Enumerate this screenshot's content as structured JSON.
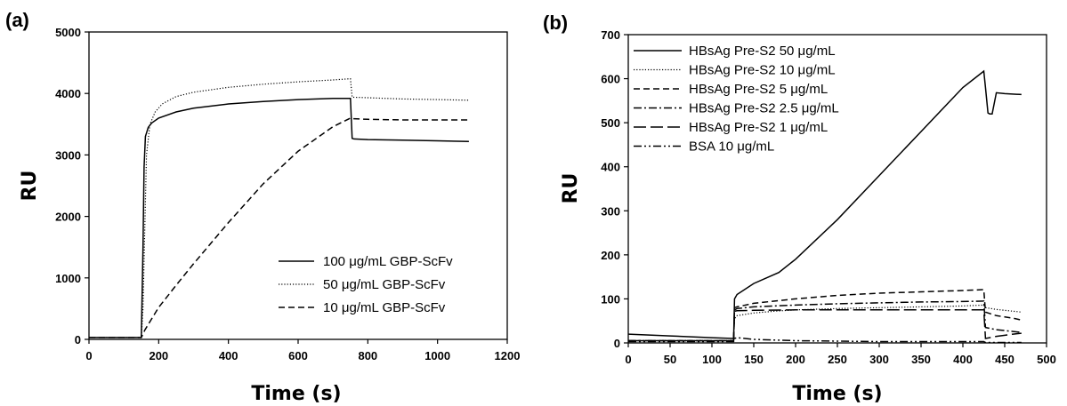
{
  "chart_data": [
    {
      "type": "line",
      "panel_label": "(a)",
      "xlabel": "Time (s)",
      "ylabel": "RU",
      "xlim": [
        0,
        1200
      ],
      "ylim": [
        0,
        5000
      ],
      "xticks": [
        0,
        200,
        400,
        600,
        800,
        1000,
        1200
      ],
      "yticks": [
        0,
        1000,
        2000,
        3000,
        4000,
        5000
      ],
      "legend_position": "bottom-right",
      "series": [
        {
          "name": "100  μg/mL    GBP-ScFv",
          "style": "solid",
          "x": [
            0,
            150,
            155,
            158,
            162,
            170,
            180,
            200,
            250,
            300,
            400,
            500,
            600,
            700,
            750,
            755,
            760,
            800,
            900,
            1000,
            1090
          ],
          "y": [
            30,
            30,
            1500,
            2800,
            3300,
            3450,
            3520,
            3600,
            3700,
            3760,
            3830,
            3870,
            3900,
            3920,
            3920,
            3270,
            3260,
            3250,
            3240,
            3230,
            3220
          ]
        },
        {
          "name": "50   μg/mL    GBP-ScFv",
          "style": "dotted",
          "x": [
            0,
            150,
            155,
            160,
            165,
            175,
            190,
            210,
            250,
            300,
            400,
            500,
            600,
            700,
            750,
            755,
            800,
            900,
            1000,
            1090
          ],
          "y": [
            30,
            30,
            500,
            1800,
            3000,
            3500,
            3700,
            3830,
            3950,
            4020,
            4100,
            4150,
            4190,
            4220,
            4240,
            3940,
            3930,
            3910,
            3900,
            3890
          ]
        },
        {
          "name": "10   μg/mL    GBP-ScFv",
          "style": "dashed",
          "x": [
            0,
            150,
            152,
            160,
            200,
            250,
            300,
            400,
            500,
            600,
            700,
            750,
            755,
            800,
            900,
            1000,
            1090
          ],
          "y": [
            30,
            30,
            50,
            150,
            520,
            880,
            1230,
            1900,
            2530,
            3060,
            3460,
            3600,
            3590,
            3580,
            3570,
            3570,
            3570
          ]
        }
      ]
    },
    {
      "type": "line",
      "panel_label": "(b)",
      "xlabel": "Time (s)",
      "ylabel": "RU",
      "xlim": [
        0,
        500
      ],
      "ylim": [
        0,
        700
      ],
      "xticks": [
        0,
        50,
        100,
        150,
        200,
        250,
        300,
        350,
        400,
        450,
        500
      ],
      "yticks": [
        0,
        100,
        200,
        300,
        400,
        500,
        600,
        700
      ],
      "legend_position": "top-left",
      "series": [
        {
          "name": "HBsAg Pre-S2 50 μg/mL",
          "style": "solid",
          "x": [
            0,
            50,
            100,
            126,
            127,
            130,
            150,
            180,
            200,
            250,
            300,
            350,
            400,
            425,
            427,
            430,
            432,
            435,
            440,
            450,
            470
          ],
          "y": [
            20,
            16,
            12,
            10,
            100,
            110,
            135,
            160,
            190,
            280,
            380,
            480,
            580,
            617,
            580,
            522,
            520,
            520,
            568,
            566,
            564
          ]
        },
        {
          "name": "HBsAg Pre-S2 10 μg/mL",
          "style": "dotted",
          "x": [
            0,
            126,
            127,
            130,
            150,
            175,
            200,
            250,
            300,
            350,
            400,
            425,
            427,
            440,
            460,
            470
          ],
          "y": [
            5,
            5,
            55,
            62,
            68,
            72,
            75,
            78,
            80,
            82,
            84,
            86,
            80,
            76,
            72,
            70
          ]
        },
        {
          "name": "HBsAg Pre-S2 5   μg/mL",
          "style": "dashed",
          "x": [
            0,
            126,
            127,
            130,
            150,
            200,
            250,
            300,
            350,
            400,
            425,
            427,
            440,
            460,
            470
          ],
          "y": [
            5,
            5,
            80,
            82,
            90,
            100,
            108,
            113,
            116,
            119,
            121,
            70,
            62,
            56,
            52
          ]
        },
        {
          "name": "HBsAg Pre-S2 2.5 μg/mL",
          "style": "dashdot",
          "x": [
            0,
            126,
            127,
            130,
            150,
            200,
            250,
            300,
            350,
            400,
            425,
            427,
            440,
            460,
            470
          ],
          "y": [
            5,
            5,
            75,
            78,
            82,
            86,
            89,
            91,
            93,
            94,
            95,
            35,
            30,
            26,
            24
          ]
        },
        {
          "name": "HBsAg Pre-S2 1   μg/mL",
          "style": "longdash",
          "x": [
            0,
            126,
            127,
            130,
            150,
            200,
            250,
            300,
            350,
            400,
            425,
            427,
            440,
            460,
            470
          ],
          "y": [
            5,
            5,
            72,
            73,
            74,
            75,
            75,
            75,
            75,
            75,
            75,
            10,
            15,
            20,
            22
          ]
        },
        {
          "name": "BSA     10  μg/mL",
          "style": "dashdotdot",
          "x": [
            0,
            126,
            127,
            130,
            150,
            200,
            250,
            300,
            350,
            400,
            425,
            427,
            470
          ],
          "y": [
            3,
            3,
            10,
            12,
            8,
            5,
            4,
            3,
            3,
            3,
            3,
            1,
            1
          ]
        }
      ]
    }
  ]
}
